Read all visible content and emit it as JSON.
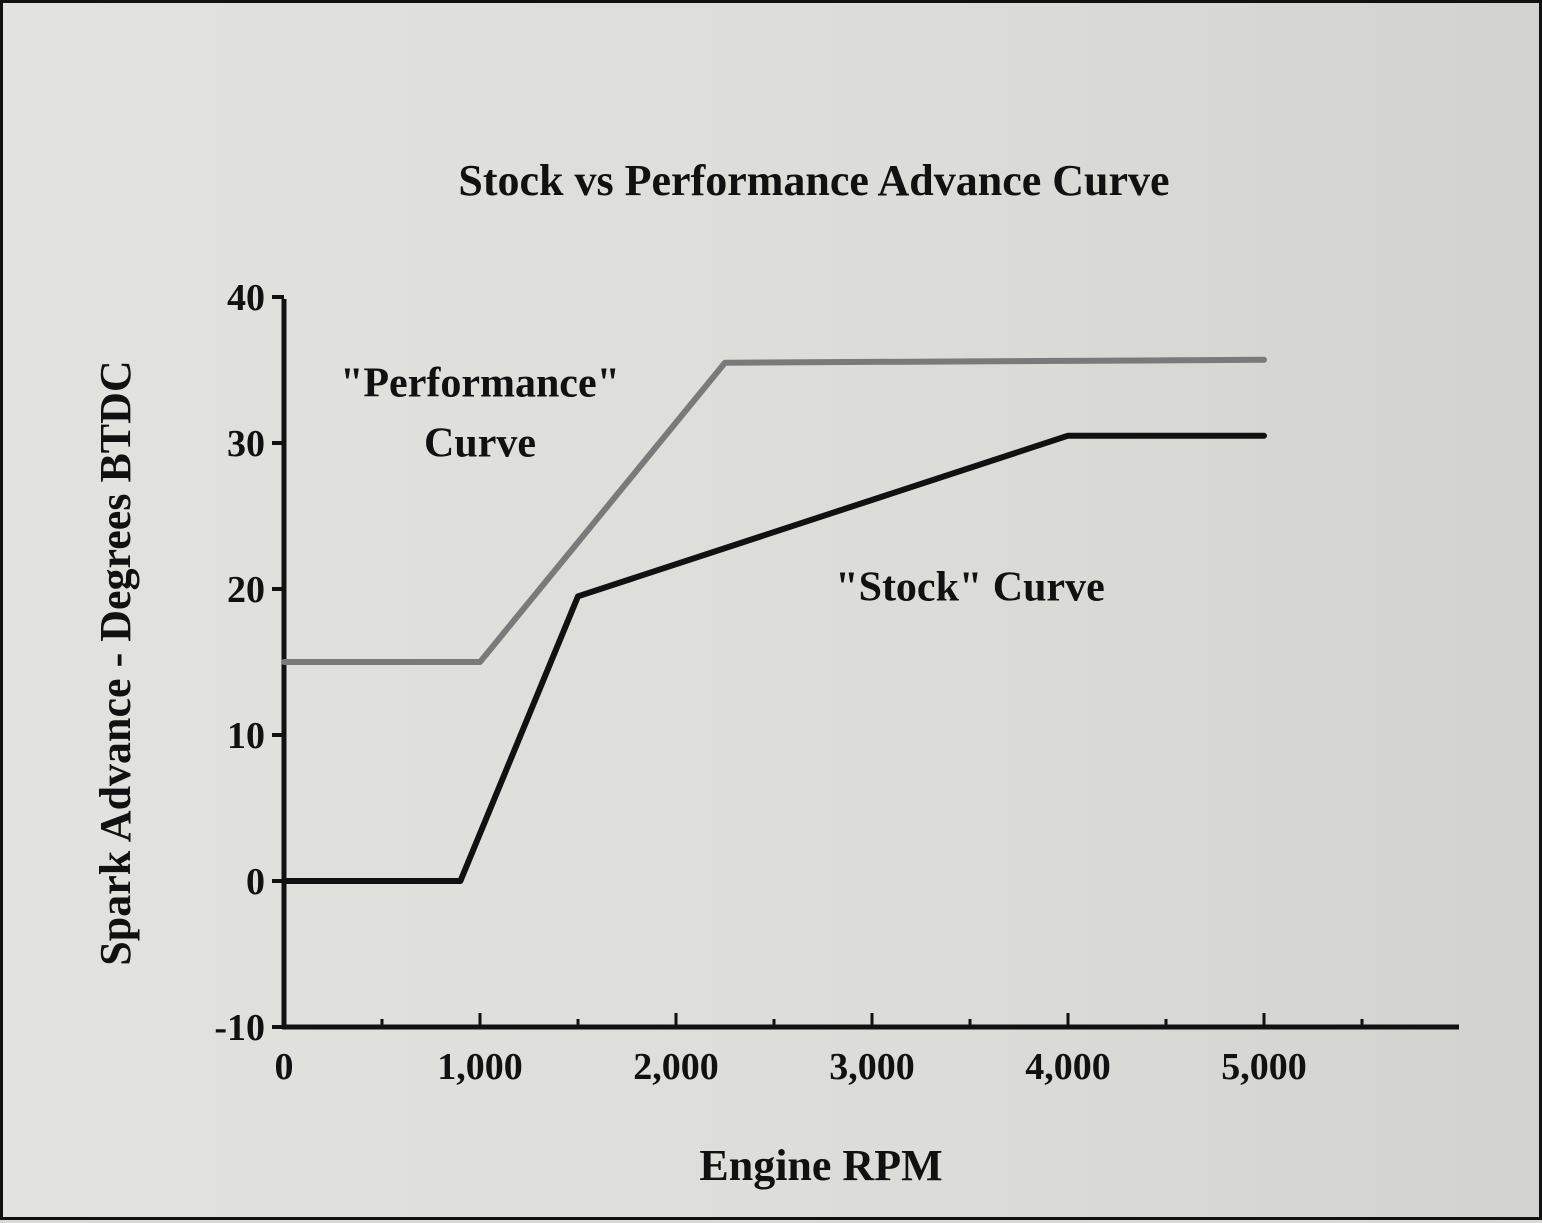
{
  "chart_data": {
    "type": "line",
    "title": "Stock vs Performance Advance Curve",
    "xlabel": "Engine RPM",
    "ylabel": "Spark Advance - Degrees BTDC",
    "xlim": [
      0,
      6000
    ],
    "ylim": [
      -10,
      40
    ],
    "x_ticks": [
      0,
      1000,
      2000,
      3000,
      4000,
      5000
    ],
    "x_tick_labels": [
      "0",
      "1,000",
      "2,000",
      "3,000",
      "4,000",
      "5,000"
    ],
    "x_minor_ticks": [
      500,
      1500,
      2500,
      3500,
      4500,
      5500
    ],
    "y_ticks": [
      -10,
      0,
      10,
      20,
      30,
      40
    ],
    "y_tick_labels": [
      "-10",
      "0",
      "10",
      "20",
      "30",
      "40"
    ],
    "grid": false,
    "legend": "none",
    "series": [
      {
        "color": "#7a7a7a",
        "points": [
          [
            0,
            15
          ],
          [
            1000,
            15
          ],
          [
            2250,
            35.5
          ],
          [
            5000,
            35.7
          ]
        ]
      },
      {
        "color": "#111111",
        "points": [
          [
            0,
            0
          ],
          [
            900,
            0
          ],
          [
            1500,
            19.5
          ],
          [
            4000,
            30.5
          ],
          [
            5000,
            30.5
          ]
        ]
      }
    ],
    "annotations": [
      {
        "lines": [
          "\"Performance\"",
          "Curve"
        ],
        "anchor": [
          1000,
          33.2
        ]
      },
      {
        "lines": [
          "\"Stock\" Curve"
        ],
        "anchor": [
          3500,
          19.2
        ]
      }
    ]
  }
}
